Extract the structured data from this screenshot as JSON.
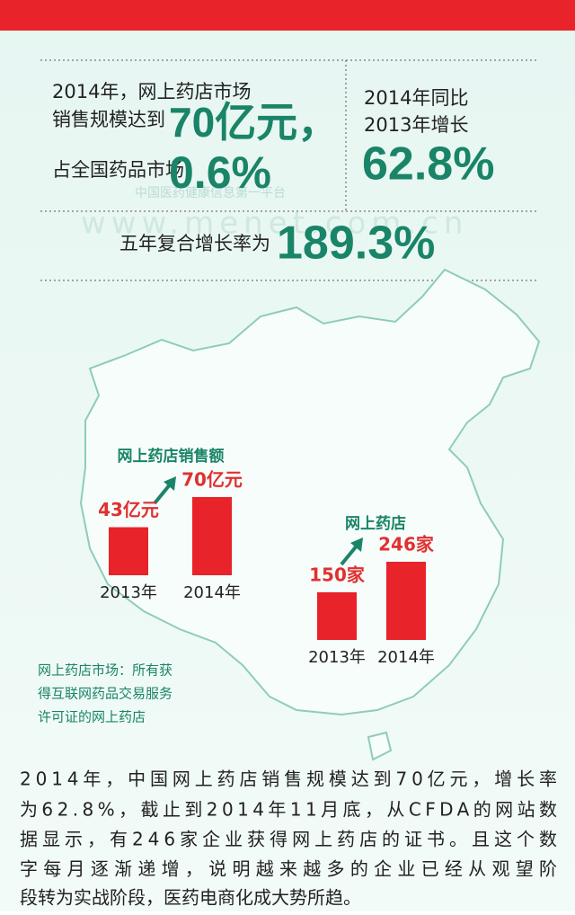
{
  "header": {
    "line1": "2014年，网上药店市场",
    "line2": "销售规模达到",
    "market_size": "70亿元，",
    "line3": "占全国药品市场",
    "share": "0.6%"
  },
  "growth": {
    "line1": "2014年同比",
    "line2": "2013年增长",
    "rate": "62.8%"
  },
  "cagr": {
    "label": "五年复合增长率为",
    "rate": "189.3%"
  },
  "watermark": {
    "tagline": "中国医药健康信息第一平台",
    "url": "www.menet.com.cn"
  },
  "chart_data": [
    {
      "type": "bar",
      "title": "网上药店销售额",
      "categories": [
        "2013年",
        "2014年"
      ],
      "values": [
        43,
        70
      ],
      "value_labels": [
        "43亿元",
        "70亿元"
      ],
      "color": "#e8232a"
    },
    {
      "type": "bar",
      "title": "网上药店",
      "categories": [
        "2013年",
        "2014年"
      ],
      "values": [
        150,
        246
      ],
      "value_labels": [
        "150家",
        "246家"
      ],
      "color": "#e8232a"
    }
  ],
  "note": [
    "网上药店市场：所有获",
    "得互联网药品交易服务",
    "许可证的网上药店"
  ],
  "paragraph": [
    "2014年，中国网上药店销售规模达到70亿元，增长率",
    "为62.8%，截止到2014年11月底，从CFDA的网站数",
    "据显示，有246家企业获得网上药店的证书。且这个数",
    "字每月逐渐递增，说明越来越多的企业已经从观望阶",
    "段转为实战阶段，医药电商化成大势所趋。"
  ]
}
